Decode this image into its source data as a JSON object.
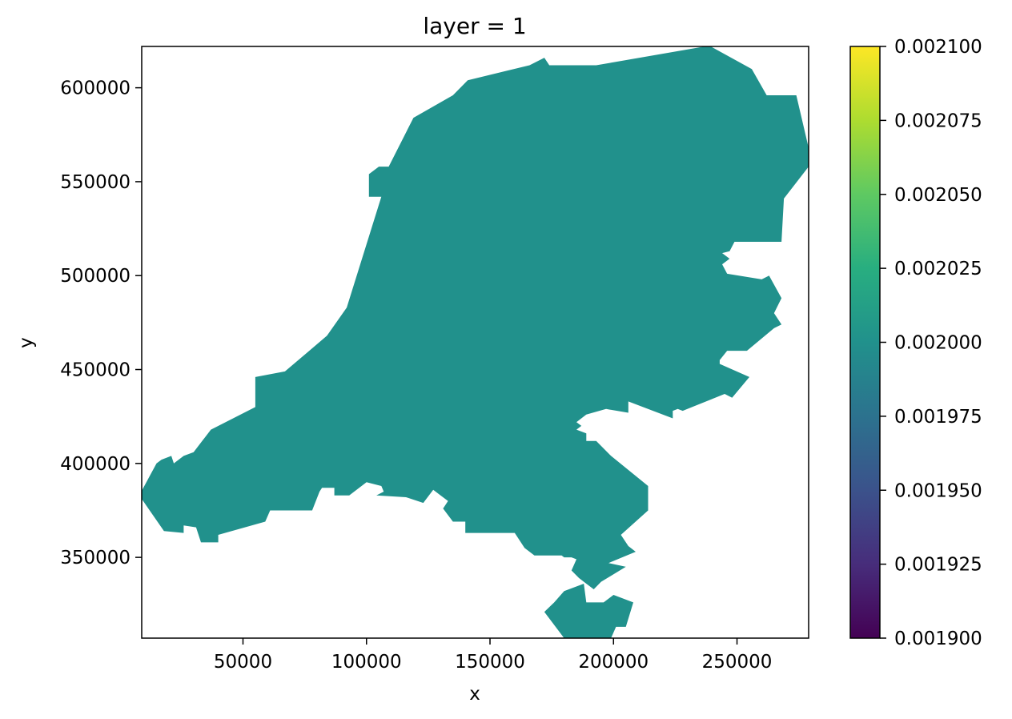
{
  "chart_data": {
    "type": "heatmap",
    "title": "layer = 1",
    "xlabel": "x",
    "ylabel": "y",
    "xlim": [
      9000,
      279000
    ],
    "ylim": [
      307000,
      622000
    ],
    "xticks": [
      50000,
      100000,
      150000,
      200000,
      250000
    ],
    "yticks": [
      350000,
      400000,
      450000,
      500000,
      550000,
      600000
    ],
    "fill_value": 0.002,
    "colormap": "viridis",
    "colorbar": {
      "range": [
        0.0019,
        0.0021
      ],
      "ticks": [
        "0.001900",
        "0.001925",
        "0.001950",
        "0.001975",
        "0.002000",
        "0.002025",
        "0.002050",
        "0.002075",
        "0.002100"
      ]
    },
    "region_outline": [
      [
        119000,
        584000
      ],
      [
        135000,
        596000
      ],
      [
        141000,
        604000
      ],
      [
        166000,
        612000
      ],
      [
        172000,
        616000
      ],
      [
        174000,
        612000
      ],
      [
        193000,
        612000
      ],
      [
        237000,
        622000
      ],
      [
        238000,
        623000
      ],
      [
        256000,
        610000
      ],
      [
        262000,
        596000
      ],
      [
        274000,
        596000
      ],
      [
        279000,
        568000
      ],
      [
        279000,
        558000
      ],
      [
        269000,
        541000
      ],
      [
        268000,
        518000
      ],
      [
        249000,
        518000
      ],
      [
        247000,
        513000
      ],
      [
        244000,
        512000
      ],
      [
        247000,
        509000
      ],
      [
        244000,
        506000
      ],
      [
        246000,
        501000
      ],
      [
        260000,
        498000
      ],
      [
        263000,
        500000
      ],
      [
        268000,
        488000
      ],
      [
        265000,
        480000
      ],
      [
        268000,
        474000
      ],
      [
        265000,
        472000
      ],
      [
        254000,
        460000
      ],
      [
        246000,
        460000
      ],
      [
        243000,
        455000
      ],
      [
        243000,
        453000
      ],
      [
        255000,
        446000
      ],
      [
        248000,
        435000
      ],
      [
        245000,
        437000
      ],
      [
        228000,
        428000
      ],
      [
        226000,
        429000
      ],
      [
        224000,
        428000
      ],
      [
        224000,
        424000
      ],
      [
        206000,
        433000
      ],
      [
        206000,
        427000
      ],
      [
        197000,
        429000
      ],
      [
        189000,
        426000
      ],
      [
        185000,
        422000
      ],
      [
        187000,
        420000
      ],
      [
        185000,
        418000
      ],
      [
        189000,
        416000
      ],
      [
        189000,
        412000
      ],
      [
        193000,
        412000
      ],
      [
        199000,
        404000
      ],
      [
        214000,
        388000
      ],
      [
        214000,
        375000
      ],
      [
        203000,
        362000
      ],
      [
        206000,
        356000
      ],
      [
        209000,
        353000
      ],
      [
        198000,
        347000
      ],
      [
        205000,
        345000
      ],
      [
        195000,
        337000
      ],
      [
        192000,
        333000
      ],
      [
        189000,
        336000
      ],
      [
        186000,
        339000
      ],
      [
        183000,
        343000
      ],
      [
        185000,
        349000
      ],
      [
        183000,
        350000
      ],
      [
        180000,
        350000
      ],
      [
        179000,
        351000
      ],
      [
        168000,
        351000
      ],
      [
        164000,
        355000
      ],
      [
        160000,
        363000
      ],
      [
        156000,
        363000
      ],
      [
        140000,
        363000
      ],
      [
        140000,
        369000
      ],
      [
        135000,
        369000
      ],
      [
        131000,
        376000
      ],
      [
        133000,
        380000
      ],
      [
        130000,
        383000
      ],
      [
        127000,
        386000
      ],
      [
        123000,
        379000
      ],
      [
        116000,
        382000
      ],
      [
        104000,
        383000
      ],
      [
        107000,
        385000
      ],
      [
        106000,
        388000
      ],
      [
        100000,
        390000
      ],
      [
        93000,
        383000
      ],
      [
        87000,
        383000
      ],
      [
        87000,
        387000
      ],
      [
        82000,
        387000
      ],
      [
        81000,
        385000
      ],
      [
        78000,
        375000
      ],
      [
        75000,
        375000
      ],
      [
        61000,
        375000
      ],
      [
        59000,
        369000
      ],
      [
        40000,
        362000
      ],
      [
        40000,
        358000
      ],
      [
        33000,
        358000
      ],
      [
        31000,
        366000
      ],
      [
        26000,
        367000
      ],
      [
        26000,
        363000
      ],
      [
        18000,
        364000
      ],
      [
        8000,
        383000
      ],
      [
        15000,
        400000
      ],
      [
        17000,
        402000
      ],
      [
        21000,
        404000
      ],
      [
        22000,
        400000
      ],
      [
        26000,
        404000
      ],
      [
        30000,
        406000
      ],
      [
        37000,
        418000
      ],
      [
        55000,
        430000
      ],
      [
        55000,
        446000
      ],
      [
        67000,
        449000
      ],
      [
        84000,
        468000
      ],
      [
        92000,
        483000
      ],
      [
        106000,
        542000
      ],
      [
        101000,
        542000
      ],
      [
        101000,
        554000
      ],
      [
        105000,
        558000
      ],
      [
        109000,
        558000
      ],
      [
        119000,
        584000
      ]
    ],
    "region_detached": [
      [
        196000,
        326000
      ],
      [
        200000,
        330000
      ],
      [
        208000,
        326000
      ],
      [
        205000,
        313000
      ],
      [
        203000,
        313000
      ],
      [
        201000,
        313000
      ],
      [
        199000,
        307000
      ],
      [
        180000,
        307000
      ],
      [
        172000,
        321000
      ],
      [
        176000,
        326000
      ],
      [
        180000,
        332000
      ],
      [
        188000,
        336000
      ],
      [
        189000,
        326000
      ],
      [
        196000,
        326000
      ]
    ]
  }
}
